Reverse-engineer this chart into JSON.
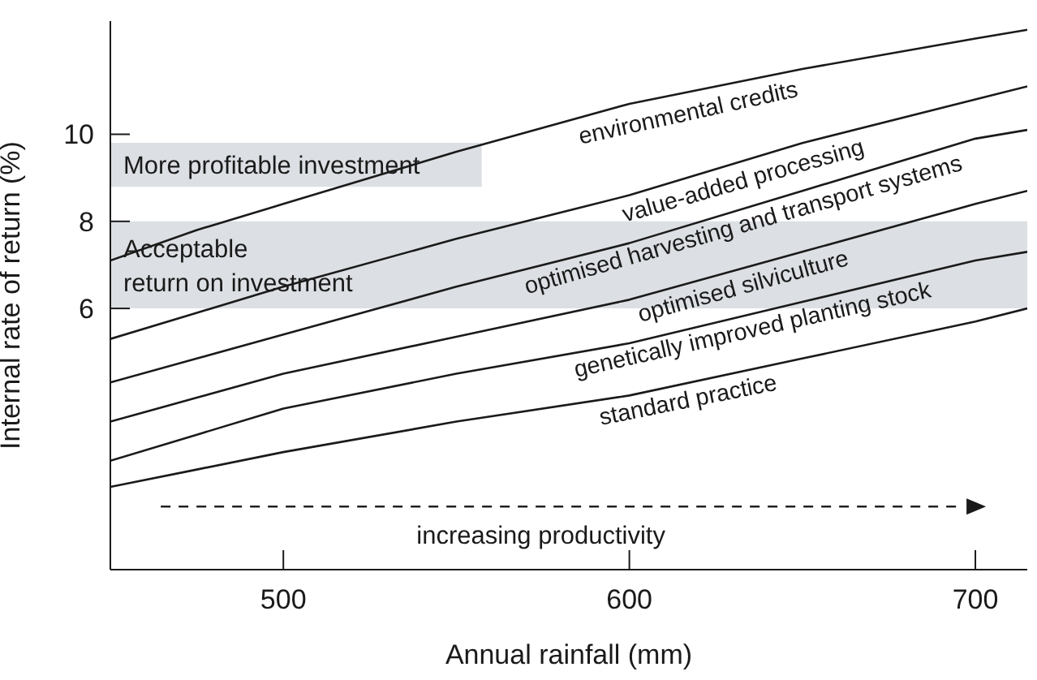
{
  "chart_data": {
    "type": "line",
    "xlabel": "Annual rainfall (mm)",
    "ylabel": "Internal rate of return (%)",
    "x": [
      450,
      475,
      500,
      550,
      600,
      650,
      700,
      715
    ],
    "series": [
      {
        "name": "environmental credits",
        "color": "#1a1a1a",
        "values": [
          7.1,
          7.8,
          8.4,
          9.6,
          10.7,
          11.5,
          12.2,
          12.4
        ]
      },
      {
        "name": "value-added processing",
        "color": "#1a1a1a",
        "values": [
          5.3,
          5.9,
          6.5,
          7.6,
          8.6,
          9.8,
          10.8,
          11.1
        ]
      },
      {
        "name": "optimised harvesting and transport systems",
        "color": "#1a1a1a",
        "values": [
          4.3,
          4.85,
          5.4,
          6.5,
          7.5,
          8.7,
          9.9,
          10.1
        ]
      },
      {
        "name": "optimised silviculture",
        "color": "#1a1a1a",
        "values": [
          3.4,
          3.95,
          4.5,
          5.35,
          6.2,
          7.3,
          8.4,
          8.7
        ]
      },
      {
        "name": "genetically improved planting stock",
        "color": "#1a1a1a",
        "values": [
          2.5,
          3.1,
          3.7,
          4.5,
          5.2,
          6.15,
          7.1,
          7.3
        ]
      },
      {
        "name": "standard practice",
        "color": "#1a1a1a",
        "values": [
          1.9,
          2.3,
          2.7,
          3.4,
          4.0,
          4.85,
          5.7,
          6.0
        ]
      }
    ],
    "xlim": [
      450,
      715
    ],
    "xticks": [
      500,
      600,
      700
    ],
    "ylim": [
      0,
      12.6
    ],
    "yticks": [
      6,
      8,
      10
    ],
    "bands": [
      {
        "axis": "y",
        "from": 6,
        "to": 8,
        "label": "Acceptable\nreturn on investment",
        "color": "#dcdfe3"
      }
    ],
    "annotations": [
      "More profitable investment",
      "increasing productivity"
    ],
    "marker": "none",
    "line_style": "solid"
  }
}
